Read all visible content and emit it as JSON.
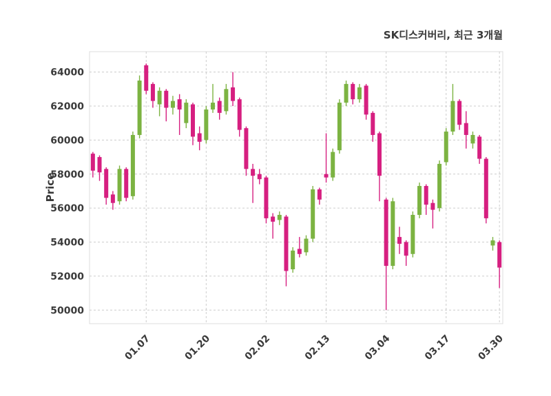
{
  "chart": {
    "title": "SK디스커버리, 최근 3개월",
    "ylabel": "Price"
  },
  "chart_data": {
    "type": "candlestick",
    "title": "SK디스커버리, 최근 3개월",
    "ylabel": "Price",
    "grid": "dashed",
    "up_color": "#7cb342",
    "down_color": "#d61f80",
    "ylim": [
      49200,
      65200
    ],
    "yticks": [
      50000,
      52000,
      54000,
      56000,
      58000,
      60000,
      62000,
      64000
    ],
    "xticks": [
      {
        "index": 8,
        "label": "01.07"
      },
      {
        "index": 17,
        "label": "01.20"
      },
      {
        "index": 26,
        "label": "02.02"
      },
      {
        "index": 35,
        "label": "02.13"
      },
      {
        "index": 44,
        "label": "03.04"
      },
      {
        "index": 53,
        "label": "03.17"
      },
      {
        "index": 61,
        "label": "03.30"
      }
    ],
    "candle_format": [
      "open",
      "high",
      "low",
      "close"
    ],
    "candles": [
      [
        59200,
        59300,
        57800,
        58200
      ],
      [
        59000,
        59100,
        57600,
        58100
      ],
      [
        58300,
        58400,
        56200,
        56600
      ],
      [
        56800,
        57000,
        55900,
        56300
      ],
      [
        56400,
        58500,
        56200,
        58300
      ],
      [
        58300,
        58400,
        56400,
        56600
      ],
      [
        56700,
        60500,
        56500,
        60300
      ],
      [
        60300,
        63800,
        60100,
        63500
      ],
      [
        64400,
        64500,
        62700,
        62900
      ],
      [
        63300,
        63400,
        61900,
        62300
      ],
      [
        62100,
        63100,
        61400,
        62900
      ],
      [
        62900,
        63000,
        61100,
        61900
      ],
      [
        61900,
        62600,
        61500,
        62300
      ],
      [
        62400,
        62700,
        60300,
        61800
      ],
      [
        61000,
        62400,
        60700,
        62200
      ],
      [
        62100,
        62200,
        59700,
        60200
      ],
      [
        60400,
        60800,
        59400,
        59900
      ],
      [
        60000,
        62000,
        59800,
        61800
      ],
      [
        61800,
        63300,
        61600,
        62200
      ],
      [
        62300,
        62500,
        61200,
        61600
      ],
      [
        61700,
        63300,
        61500,
        63000
      ],
      [
        63100,
        64000,
        62000,
        62300
      ],
      [
        62400,
        62500,
        60200,
        60600
      ],
      [
        60700,
        60800,
        57900,
        58300
      ],
      [
        58300,
        58600,
        56300,
        57900
      ],
      [
        58000,
        58300,
        57400,
        57700
      ],
      [
        57800,
        57900,
        55100,
        55400
      ],
      [
        55500,
        55700,
        54200,
        55200
      ],
      [
        55300,
        55800,
        55000,
        55600
      ],
      [
        55500,
        55600,
        51400,
        52300
      ],
      [
        52400,
        53700,
        52200,
        53500
      ],
      [
        53600,
        54300,
        53100,
        53300
      ],
      [
        53400,
        54400,
        53200,
        54200
      ],
      [
        54200,
        57300,
        54000,
        57100
      ],
      [
        57100,
        57200,
        56200,
        56500
      ],
      [
        58000,
        60400,
        57500,
        57800
      ],
      [
        57800,
        59500,
        57600,
        59300
      ],
      [
        59400,
        62400,
        59200,
        62200
      ],
      [
        62200,
        63500,
        62000,
        63300
      ],
      [
        63300,
        63400,
        62100,
        62400
      ],
      [
        62400,
        63300,
        62200,
        63100
      ],
      [
        63200,
        63300,
        61200,
        61500
      ],
      [
        61600,
        61700,
        59900,
        60300
      ],
      [
        60400,
        60500,
        56400,
        57900
      ],
      [
        56500,
        56600,
        50000,
        52600
      ],
      [
        52600,
        56600,
        52400,
        56400
      ],
      [
        54300,
        54900,
        53300,
        53900
      ],
      [
        54000,
        54100,
        52600,
        53200
      ],
      [
        53300,
        55800,
        53100,
        55600
      ],
      [
        55600,
        57500,
        55400,
        57300
      ],
      [
        57300,
        57400,
        55600,
        56200
      ],
      [
        56300,
        56500,
        54800,
        55900
      ],
      [
        56000,
        58800,
        55800,
        58600
      ],
      [
        58700,
        60700,
        58500,
        60500
      ],
      [
        60500,
        63300,
        60300,
        62300
      ],
      [
        62300,
        62400,
        60600,
        60900
      ],
      [
        61000,
        61700,
        59500,
        60300
      ],
      [
        59800,
        60500,
        59500,
        60300
      ],
      [
        60200,
        60300,
        58600,
        58900
      ],
      [
        58900,
        59000,
        55100,
        55400
      ],
      [
        53800,
        54300,
        53500,
        54100
      ],
      [
        54000,
        54100,
        51300,
        52500
      ]
    ]
  }
}
